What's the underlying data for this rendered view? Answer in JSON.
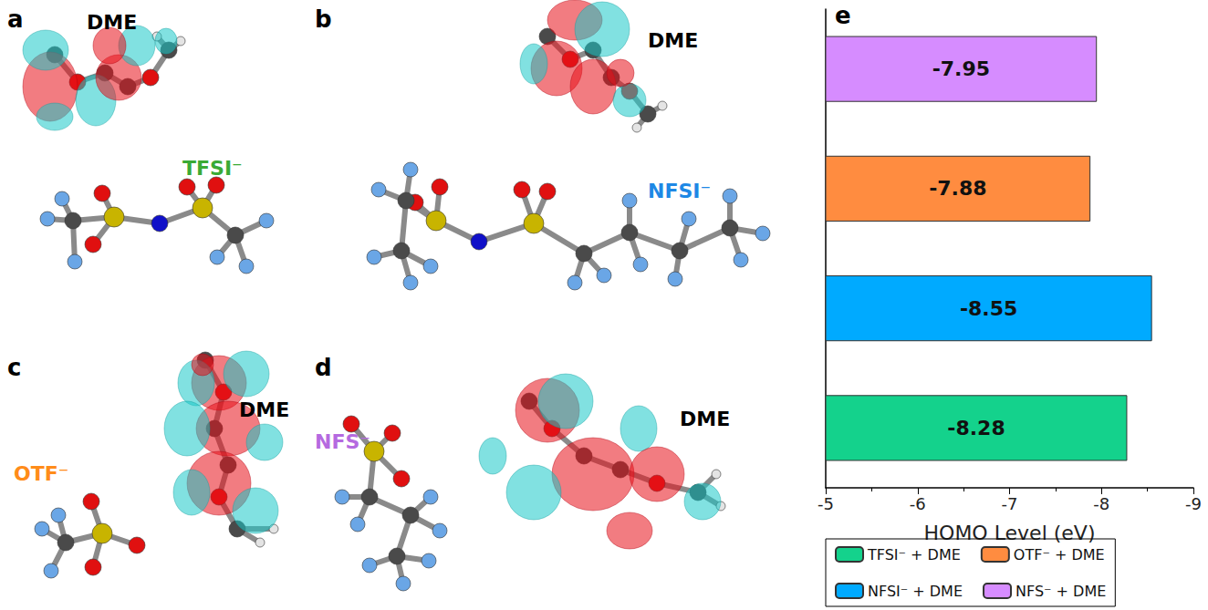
{
  "panel_labels": [
    "a",
    "b",
    "c",
    "d",
    "e"
  ],
  "molecules": [
    {
      "solvent": "DME",
      "anion": "TFSI⁻",
      "color": "#3aaa35"
    },
    {
      "solvent": "DME",
      "anion": "NFSI⁻",
      "color": "#1e88e5"
    },
    {
      "solvent": "DME",
      "anion": "OTF⁻",
      "color": "#ff8c1a"
    },
    {
      "solvent": "DME",
      "anion": "NFS⁻",
      "color": "#b56ae0"
    }
  ],
  "chart_data": {
    "type": "bar",
    "orientation": "horizontal",
    "categories": [
      null,
      null,
      null,
      null
    ],
    "series": [
      {
        "name": "TFSI⁻ + DME",
        "color": "#14d28c",
        "values": [
          -8.28,
          null,
          null,
          null
        ]
      },
      {
        "name": "OTF⁻ + DME",
        "color": "#ff8c40",
        "values": [
          null,
          null,
          -7.88,
          null
        ]
      },
      {
        "name": "NFSI⁻ + DME",
        "color": "#00aaff",
        "values": [
          null,
          -8.55,
          null,
          null
        ]
      },
      {
        "name": "NFS⁻ + DME",
        "color": "#d68cff",
        "values": [
          null,
          null,
          null,
          -7.95
        ]
      }
    ],
    "xlabel": "HOMO Level (eV)",
    "xlim": [
      -5,
      -9
    ],
    "xticks": [
      -5,
      -6,
      -7,
      -8,
      -9
    ],
    "grid": false,
    "legend": "bottom",
    "data_labels": true,
    "tick_labels": "x"
  }
}
